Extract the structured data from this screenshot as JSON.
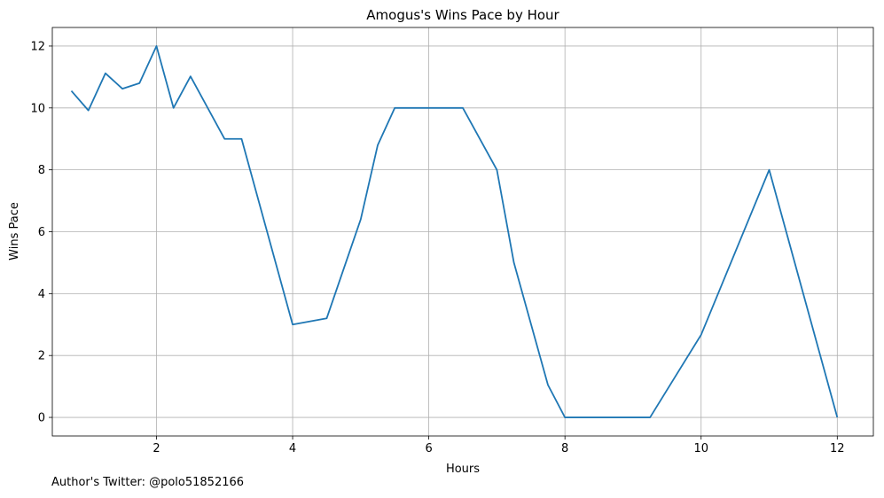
{
  "chart_data": {
    "type": "line",
    "title": "Amogus's Wins Pace by Hour",
    "xlabel": "Hours",
    "ylabel": "Wins Pace",
    "xlim": [
      0.47,
      12.53
    ],
    "ylim": [
      -0.6,
      12.6
    ],
    "xticks": [
      2,
      4,
      6,
      8,
      10,
      12
    ],
    "yticks": [
      0,
      2,
      4,
      6,
      8,
      10,
      12
    ],
    "grid": true,
    "line_color": "#1f77b4",
    "series": [
      {
        "x": [
          0.75,
          1.0,
          1.25,
          1.5,
          1.75,
          2.0,
          2.25,
          2.5,
          3.0,
          3.25,
          4.0,
          4.5,
          5.0,
          5.25,
          5.5,
          6.0,
          6.5,
          7.0,
          7.25,
          7.75,
          8.0,
          8.5,
          9.25,
          10.0,
          11.0,
          12.0
        ],
        "y": [
          10.55,
          9.92,
          11.12,
          10.62,
          10.8,
          12.0,
          10.0,
          11.02,
          9.0,
          9.0,
          3.0,
          3.2,
          6.4,
          8.8,
          10.0,
          10.0,
          10.0,
          8.0,
          5.0,
          1.05,
          0.0,
          0.0,
          0.0,
          2.67,
          8.0,
          0.0
        ]
      }
    ]
  },
  "footer": {
    "author_note": "Author's Twitter: @polo51852166"
  }
}
